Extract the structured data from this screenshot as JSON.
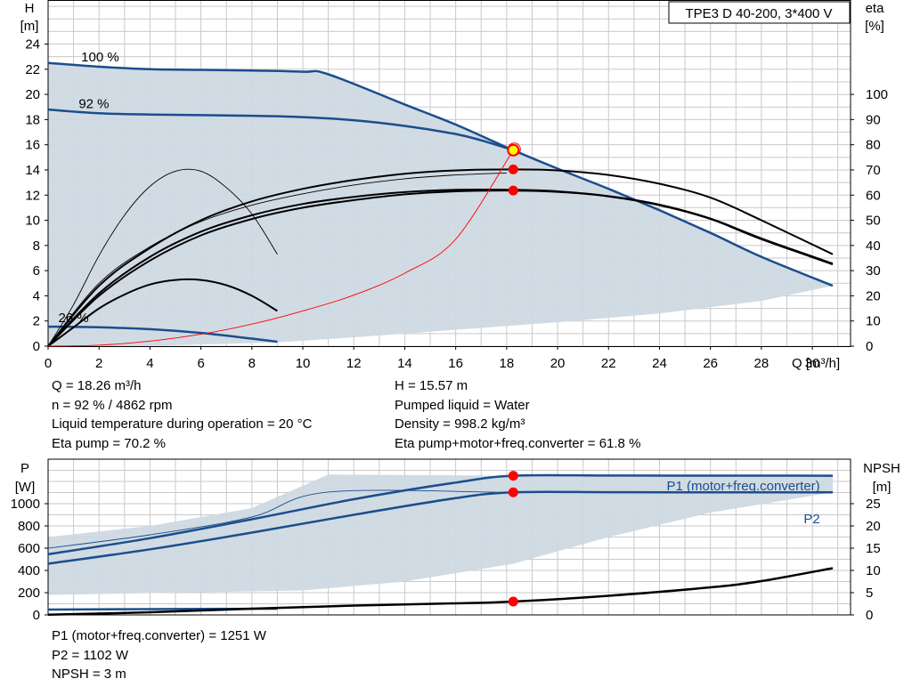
{
  "chart_data": [
    {
      "type": "line",
      "title": "TPE3 D 40-200, 3*400 V",
      "xlabel": "Q [m³/h]",
      "ylabel_left": [
        "H",
        "[m]"
      ],
      "ylabel_right": [
        "eta",
        "[%]"
      ],
      "xlim": [
        0,
        31.5
      ],
      "ylim": [
        0,
        27.5
      ],
      "y2lim": [
        0,
        137.5
      ],
      "xticks": [
        0,
        2,
        4,
        6,
        8,
        10,
        12,
        14,
        16,
        18,
        20,
        22,
        24,
        26,
        28,
        30
      ],
      "yticks": [
        0,
        2,
        4,
        6,
        8,
        10,
        12,
        14,
        16,
        18,
        20,
        22,
        24
      ],
      "y2ticks": [
        0,
        10,
        20,
        30,
        40,
        50,
        60,
        70,
        80,
        90,
        100
      ],
      "grid": true,
      "operating_area": {
        "upper": [
          [
            0,
            22.5
          ],
          [
            2,
            22.2
          ],
          [
            4,
            22.0
          ],
          [
            6,
            21.95
          ],
          [
            8,
            21.9
          ],
          [
            10,
            21.8
          ],
          [
            11,
            21.6
          ],
          [
            14,
            19.2
          ],
          [
            16,
            17.6
          ],
          [
            18.26,
            15.57
          ],
          [
            20,
            14.1
          ],
          [
            22,
            12.5
          ],
          [
            24,
            10.8
          ],
          [
            26,
            9.0
          ],
          [
            28,
            7.1
          ],
          [
            30.8,
            4.8
          ]
        ],
        "lower": [
          [
            30.8,
            4.8
          ],
          [
            28,
            3.6
          ],
          [
            24,
            2.6
          ],
          [
            20,
            1.9
          ],
          [
            16,
            1.3
          ],
          [
            12,
            0.7
          ],
          [
            9,
            0.3
          ],
          [
            4.5,
            0.05
          ],
          [
            0,
            0
          ]
        ]
      },
      "series": [
        {
          "name": "100 %",
          "role": "H",
          "color": "#1a4e8c",
          "x": [
            0,
            2,
            4,
            6,
            8,
            10,
            11,
            14,
            16,
            18.26,
            20,
            22,
            24,
            26,
            28,
            30.8
          ],
          "y": [
            22.5,
            22.2,
            22.0,
            21.95,
            21.9,
            21.8,
            21.6,
            19.2,
            17.6,
            15.57,
            14.1,
            12.5,
            10.8,
            9.0,
            7.1,
            4.8
          ]
        },
        {
          "name": "92 %",
          "role": "H",
          "color": "#1a4e8c",
          "x": [
            0,
            2,
            4,
            6,
            8,
            10,
            12,
            14,
            16,
            17,
            18.26
          ],
          "y": [
            18.8,
            18.5,
            18.4,
            18.35,
            18.3,
            18.2,
            17.95,
            17.5,
            16.85,
            16.35,
            15.57
          ]
        },
        {
          "name": "26 %",
          "role": "H",
          "color": "#1a4e8c",
          "x": [
            0,
            2,
            4,
            6,
            8,
            9
          ],
          "y": [
            1.55,
            1.5,
            1.35,
            1.05,
            0.6,
            0.35
          ]
        },
        {
          "name": "",
          "role": "eta",
          "color": "#000000",
          "x": [
            0,
            2,
            4,
            6,
            8,
            10,
            12,
            14,
            16,
            18.26,
            20,
            22,
            24,
            26,
            28,
            30.8
          ],
          "y": [
            0,
            24,
            39,
            50,
            57.5,
            62.5,
            66,
            68.5,
            69.8,
            70.2,
            69.8,
            68,
            64.5,
            59,
            50,
            36.5
          ]
        },
        {
          "name": "",
          "role": "eta",
          "color": "#000000",
          "x": [
            0,
            2,
            4,
            6,
            8,
            10,
            12,
            14,
            16,
            18.26,
            20,
            22,
            24,
            26,
            28,
            30.8
          ],
          "y": [
            0,
            20,
            34,
            44,
            50.5,
            55,
            58,
            60.3,
            61.5,
            61.8,
            61.3,
            59.5,
            56,
            50.5,
            42.5,
            32.5
          ]
        },
        {
          "name": "",
          "role": "eta",
          "color": "#000000",
          "x": [
            0,
            2,
            4,
            6,
            8,
            10,
            12,
            14,
            16,
            18.26,
            20,
            22,
            24,
            26,
            28,
            30.8
          ],
          "y": [
            0,
            21,
            35.5,
            45.5,
            52,
            56.5,
            59.3,
            61.2,
            62.1,
            62.1,
            61.5,
            59.6,
            56.2,
            50.7,
            42.8,
            32.8
          ]
        },
        {
          "name": "",
          "role": "eta",
          "color": "#000000",
          "x": [
            0,
            2,
            4,
            6,
            8,
            10,
            12,
            14,
            16,
            18
          ],
          "y": [
            0,
            25,
            39.5,
            49.5,
            56,
            60.5,
            64,
            66.5,
            68,
            68.8
          ]
        },
        {
          "name": "",
          "role": "eta",
          "color": "#000000",
          "x": [
            0,
            1,
            2,
            3,
            4,
            5,
            6,
            7,
            8,
            9
          ],
          "y": [
            0,
            16.5,
            36,
            52,
            63.5,
            69.5,
            69.5,
            63,
            52.5,
            36.5
          ]
        },
        {
          "name": "",
          "role": "eta",
          "color": "#000000",
          "x": [
            0,
            1,
            2,
            3,
            4,
            5,
            6,
            7,
            8,
            9
          ],
          "y": [
            0,
            7.5,
            15,
            20.5,
            24.5,
            26.3,
            26.3,
            24.2,
            20,
            14
          ]
        },
        {
          "name": "",
          "role": "system",
          "color": "#ff0000",
          "x": [
            0,
            2,
            4,
            6,
            8,
            10,
            12,
            14,
            16,
            18.26
          ],
          "y": [
            0,
            0.08,
            0.4,
            0.95,
            1.75,
            2.8,
            4.05,
            5.8,
            8.5,
            15.57
          ]
        }
      ],
      "points": [
        {
          "x": 18.26,
          "y": 15.57,
          "axis": "H",
          "style": "duty"
        },
        {
          "x": 18.26,
          "y": 70.2,
          "axis": "eta"
        },
        {
          "x": 18.26,
          "y": 61.8,
          "axis": "eta"
        }
      ]
    },
    {
      "type": "line",
      "ylabel_left": [
        "P",
        "[W]"
      ],
      "ylabel_right": [
        "NPSH",
        "[m]"
      ],
      "xlim": [
        0,
        31.5
      ],
      "ylim": [
        0,
        1400
      ],
      "y2lim": [
        0,
        35
      ],
      "yticks": [
        0,
        200,
        400,
        600,
        800,
        1000
      ],
      "y2ticks": [
        0,
        5,
        10,
        15,
        20,
        25
      ],
      "grid": true,
      "operating_area": {
        "upper": [
          [
            0,
            700
          ],
          [
            4,
            800
          ],
          [
            8,
            960
          ],
          [
            11,
            1262
          ],
          [
            18.26,
            1251
          ],
          [
            30.8,
            1251
          ]
        ],
        "lower": [
          [
            30.8,
            1102
          ],
          [
            26,
            920
          ],
          [
            22,
            700
          ],
          [
            18.26,
            460
          ],
          [
            14,
            300
          ],
          [
            10,
            220
          ],
          [
            0,
            180
          ]
        ]
      },
      "series": [
        {
          "name": "P1 (motor+freq.converter)",
          "role": "P",
          "color": "#1a4e8c",
          "x": [
            0,
            4,
            8,
            12,
            16,
            18.26,
            22,
            26,
            30.8
          ],
          "y": [
            545,
            690,
            860,
            1040,
            1190,
            1251,
            1253,
            1252,
            1251
          ]
        },
        {
          "name": "P2",
          "role": "P",
          "color": "#1a4e8c",
          "x": [
            0,
            4,
            8,
            12,
            16,
            18.26,
            22,
            26,
            30.8
          ],
          "y": [
            460,
            590,
            740,
            900,
            1050,
            1102,
            1103,
            1102,
            1102
          ]
        },
        {
          "name": "",
          "role": "P",
          "color": "#1a4e8c",
          "x": [
            0,
            4,
            8,
            11,
            18.26,
            22,
            26,
            30.8
          ],
          "y": [
            600,
            720,
            880,
            1105,
            1102,
            1103,
            1102,
            1102
          ]
        },
        {
          "name": "",
          "role": "P",
          "color": "#1a4e8c",
          "x": [
            0,
            4,
            9
          ],
          "y": [
            48,
            52,
            56
          ]
        },
        {
          "name": "",
          "role": "NPSH",
          "color": "#000000",
          "x": [
            0,
            4,
            8,
            12,
            16,
            18.26,
            22,
            26,
            28,
            30.8
          ],
          "y": [
            0.05,
            0.6,
            1.4,
            2.1,
            2.6,
            3.0,
            4.3,
            6.2,
            7.6,
            10.5
          ]
        }
      ],
      "points": [
        {
          "x": 18.26,
          "y": 1251,
          "axis": "P"
        },
        {
          "x": 18.26,
          "y": 1102,
          "axis": "P"
        },
        {
          "x": 18.26,
          "y": 3,
          "axis": "NPSH"
        }
      ]
    }
  ],
  "info_top_left": [
    "Q = 18.26 m³/h",
    "n = 92 % / 4862 rpm",
    "Liquid temperature during operation = 20 °C",
    "Eta pump = 70.2 %"
  ],
  "info_top_right": [
    "H = 15.57 m",
    "Pumped liquid = Water",
    "Density = 998.2 kg/m³",
    "Eta pump+motor+freq.converter = 61.8 %"
  ],
  "info_bottom": [
    "P1 (motor+freq.converter) = 1251 W",
    "P2 = 1102 W",
    "NPSH = 3 m"
  ],
  "colors": {
    "area": "#cfd9e3",
    "curve_blue": "#1a4e8c",
    "grid": "#c9c9c9",
    "marker": "#ff0000",
    "duty_marker": "#ffff00"
  }
}
